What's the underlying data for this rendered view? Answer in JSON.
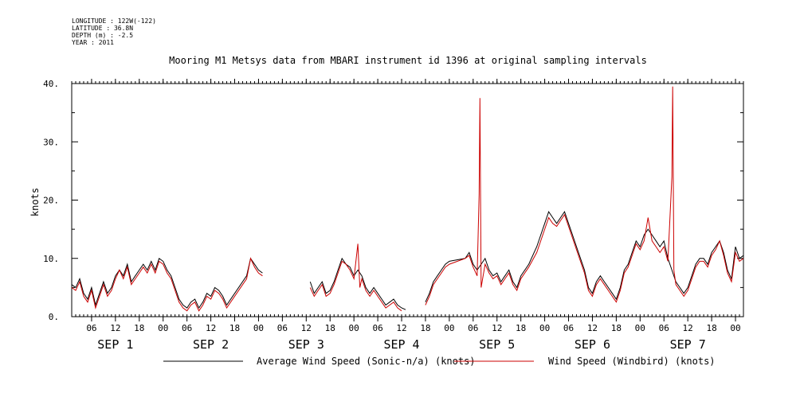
{
  "header": {
    "longitude": "LONGITUDE : 122W(-122)",
    "latitude": "LATITUDE : 36.8N",
    "depth": "DEPTH (m) : -2.5",
    "year": "YEAR : 2011"
  },
  "chart_data": {
    "type": "line",
    "title": "Mooring M1 Metsys data from MBARI instrument id 1396 at original sampling intervals",
    "xlabel": "",
    "ylabel": "knots",
    "xlim_hours_note": "",
    "ylim": [
      0,
      40
    ],
    "y_ticks": [
      0,
      10,
      20,
      30,
      40
    ],
    "y_tick_labels": [
      "0.",
      "10.",
      "20.",
      "30.",
      "40."
    ],
    "x_hour_ticks": [
      {
        "h": 6,
        "label": "06"
      },
      {
        "h": 12,
        "label": "12"
      },
      {
        "h": 18,
        "label": "18"
      },
      {
        "h": 24,
        "label": "00"
      },
      {
        "h": 30,
        "label": "06"
      },
      {
        "h": 36,
        "label": "12"
      },
      {
        "h": 42,
        "label": "18"
      },
      {
        "h": 48,
        "label": "00"
      },
      {
        "h": 54,
        "label": "06"
      },
      {
        "h": 60,
        "label": "12"
      },
      {
        "h": 66,
        "label": "18"
      },
      {
        "h": 72,
        "label": "00"
      },
      {
        "h": 78,
        "label": "06"
      },
      {
        "h": 84,
        "label": "12"
      },
      {
        "h": 90,
        "label": "18"
      },
      {
        "h": 96,
        "label": "00"
      },
      {
        "h": 102,
        "label": "06"
      },
      {
        "h": 108,
        "label": "12"
      },
      {
        "h": 114,
        "label": "18"
      },
      {
        "h": 120,
        "label": "00"
      },
      {
        "h": 126,
        "label": "06"
      },
      {
        "h": 132,
        "label": "12"
      },
      {
        "h": 138,
        "label": "18"
      },
      {
        "h": 144,
        "label": "00"
      },
      {
        "h": 150,
        "label": "06"
      },
      {
        "h": 156,
        "label": "12"
      },
      {
        "h": 162,
        "label": "18"
      },
      {
        "h": 168,
        "label": "00"
      }
    ],
    "day_labels": [
      {
        "h": 12,
        "label": "SEP  1"
      },
      {
        "h": 36,
        "label": "SEP  2"
      },
      {
        "h": 60,
        "label": "SEP  3"
      },
      {
        "h": 84,
        "label": "SEP  4"
      },
      {
        "h": 108,
        "label": "SEP  5"
      },
      {
        "h": 132,
        "label": "SEP  6"
      },
      {
        "h": 156,
        "label": "SEP  7"
      }
    ],
    "x_range_hours": [
      1,
      170
    ],
    "series": [
      {
        "name": "Average Wind Speed (Sonic-n/a) (knots)",
        "color": "#000000",
        "points": [
          [
            1,
            5.5
          ],
          [
            2,
            5
          ],
          [
            3,
            6.5
          ],
          [
            4,
            4
          ],
          [
            5,
            3
          ],
          [
            6,
            5
          ],
          [
            7,
            2
          ],
          [
            8,
            4
          ],
          [
            9,
            6
          ],
          [
            10,
            4
          ],
          [
            11,
            5
          ],
          [
            12,
            7
          ],
          [
            13,
            8
          ],
          [
            14,
            7
          ],
          [
            15,
            9
          ],
          [
            16,
            6
          ],
          [
            17,
            7
          ],
          [
            18,
            8
          ],
          [
            19,
            9
          ],
          [
            20,
            8
          ],
          [
            21,
            9.5
          ],
          [
            22,
            8
          ],
          [
            23,
            10
          ],
          [
            24,
            9.5
          ],
          [
            25,
            8
          ],
          [
            26,
            7
          ],
          [
            27,
            5
          ],
          [
            28,
            3
          ],
          [
            29,
            2
          ],
          [
            30,
            1.5
          ],
          [
            31,
            2.5
          ],
          [
            32,
            3
          ],
          [
            33,
            1.5
          ],
          [
            34,
            2.5
          ],
          [
            35,
            4
          ],
          [
            36,
            3.5
          ],
          [
            37,
            5
          ],
          [
            38,
            4.5
          ],
          [
            39,
            3.5
          ],
          [
            40,
            2
          ],
          [
            45,
            7
          ],
          [
            46,
            10
          ],
          [
            47,
            9
          ],
          [
            48,
            8
          ],
          [
            49,
            7.5
          ],
          [
            null,
            null
          ],
          [
            61,
            6
          ],
          [
            62,
            4
          ],
          [
            63,
            5
          ],
          [
            64,
            6
          ],
          [
            65,
            4
          ],
          [
            66,
            4.5
          ],
          [
            67,
            6
          ],
          [
            68,
            8
          ],
          [
            69,
            10
          ],
          [
            70,
            9
          ],
          [
            71,
            8.5
          ],
          [
            72,
            7
          ],
          [
            73,
            8
          ],
          [
            74,
            7
          ],
          [
            75,
            5
          ],
          [
            76,
            4
          ],
          [
            77,
            5
          ],
          [
            78,
            4
          ],
          [
            79,
            3
          ],
          [
            80,
            2
          ],
          [
            81,
            2.5
          ],
          [
            82,
            3
          ],
          [
            83,
            2
          ],
          [
            84,
            1.5
          ],
          [
            85,
            1.2
          ],
          [
            null,
            null
          ],
          [
            90,
            2.5
          ],
          [
            91,
            4
          ],
          [
            92,
            6
          ],
          [
            93,
            7
          ],
          [
            94,
            8
          ],
          [
            95,
            9
          ],
          [
            96,
            9.5
          ],
          [
            100,
            10
          ],
          [
            101,
            11
          ],
          [
            102,
            9
          ],
          [
            103,
            8
          ],
          [
            104,
            9
          ],
          [
            105,
            10
          ],
          [
            106,
            8
          ],
          [
            107,
            7
          ],
          [
            108,
            7.5
          ],
          [
            109,
            6
          ],
          [
            110,
            7
          ],
          [
            111,
            8
          ],
          [
            112,
            6
          ],
          [
            113,
            5
          ],
          [
            114,
            7
          ],
          [
            116,
            9
          ],
          [
            118,
            12
          ],
          [
            120,
            16
          ],
          [
            121,
            18
          ],
          [
            122,
            17
          ],
          [
            123,
            16
          ],
          [
            124,
            17
          ],
          [
            125,
            18
          ],
          [
            126,
            16
          ],
          [
            127,
            14
          ],
          [
            128,
            12
          ],
          [
            130,
            8
          ],
          [
            131,
            5
          ],
          [
            132,
            4
          ],
          [
            133,
            6
          ],
          [
            134,
            7
          ],
          [
            135,
            6
          ],
          [
            136,
            5
          ],
          [
            137,
            4
          ],
          [
            138,
            3
          ],
          [
            139,
            5
          ],
          [
            140,
            8
          ],
          [
            141,
            9
          ],
          [
            142,
            11
          ],
          [
            143,
            13
          ],
          [
            144,
            12
          ],
          [
            145,
            14
          ],
          [
            146,
            15
          ],
          [
            147,
            14
          ],
          [
            148,
            13
          ],
          [
            149,
            12
          ],
          [
            150,
            13
          ],
          [
            151,
            10
          ],
          [
            152,
            8
          ],
          [
            153,
            6
          ],
          [
            154,
            5
          ],
          [
            155,
            4
          ],
          [
            156,
            5
          ],
          [
            157,
            7
          ],
          [
            158,
            9
          ],
          [
            159,
            10
          ],
          [
            160,
            10
          ],
          [
            161,
            9
          ],
          [
            162,
            11
          ],
          [
            163,
            12
          ],
          [
            164,
            13
          ],
          [
            165,
            11
          ],
          [
            166,
            8
          ],
          [
            167,
            6.5
          ],
          [
            168,
            12
          ],
          [
            169,
            10
          ],
          [
            170,
            10.5
          ]
        ]
      },
      {
        "name": "Wind Speed (Windbird) (knots)",
        "color": "#cc0000",
        "points": [
          [
            1,
            5
          ],
          [
            2,
            4.5
          ],
          [
            3,
            6
          ],
          [
            4,
            3.5
          ],
          [
            5,
            2.5
          ],
          [
            6,
            4.5
          ],
          [
            7,
            1.5
          ],
          [
            8,
            3.5
          ],
          [
            9,
            5.5
          ],
          [
            10,
            3.5
          ],
          [
            11,
            4.5
          ],
          [
            12,
            6.5
          ],
          [
            13,
            8
          ],
          [
            14,
            6.5
          ],
          [
            15,
            8.5
          ],
          [
            16,
            5.5
          ],
          [
            17,
            6.5
          ],
          [
            18,
            7.5
          ],
          [
            19,
            8.5
          ],
          [
            20,
            7.5
          ],
          [
            21,
            9
          ],
          [
            22,
            7.5
          ],
          [
            23,
            9.5
          ],
          [
            24,
            9
          ],
          [
            25,
            7.5
          ],
          [
            26,
            6.5
          ],
          [
            27,
            4.5
          ],
          [
            28,
            2.5
          ],
          [
            29,
            1.5
          ],
          [
            30,
            1
          ],
          [
            31,
            2
          ],
          [
            32,
            2.5
          ],
          [
            33,
            1
          ],
          [
            34,
            2
          ],
          [
            35,
            3.5
          ],
          [
            36,
            3
          ],
          [
            37,
            4.5
          ],
          [
            38,
            4
          ],
          [
            39,
            3
          ],
          [
            40,
            1.5
          ],
          [
            45,
            6.5
          ],
          [
            46,
            10
          ],
          [
            47,
            8.5
          ],
          [
            48,
            7.5
          ],
          [
            49,
            7
          ],
          [
            null,
            null
          ],
          [
            61,
            5
          ],
          [
            62,
            3.5
          ],
          [
            63,
            4.5
          ],
          [
            64,
            5.5
          ],
          [
            65,
            3.5
          ],
          [
            66,
            4
          ],
          [
            67,
            5.5
          ],
          [
            68,
            7.5
          ],
          [
            69,
            9.5
          ],
          [
            70,
            9
          ],
          [
            71,
            8
          ],
          [
            72,
            6.5
          ],
          [
            73,
            12.5
          ],
          [
            73.5,
            5
          ],
          [
            74,
            6.5
          ],
          [
            75,
            4.5
          ],
          [
            76,
            3.5
          ],
          [
            77,
            4.5
          ],
          [
            78,
            3.5
          ],
          [
            79,
            2.5
          ],
          [
            80,
            1.5
          ],
          [
            81,
            2
          ],
          [
            82,
            2.5
          ],
          [
            83,
            1.5
          ],
          [
            84,
            1
          ],
          [
            null,
            null
          ],
          [
            90,
            2
          ],
          [
            91,
            3.5
          ],
          [
            92,
            5.5
          ],
          [
            93,
            6.5
          ],
          [
            94,
            7.5
          ],
          [
            95,
            8.5
          ],
          [
            96,
            9
          ],
          [
            100,
            10
          ],
          [
            101,
            10.5
          ],
          [
            102,
            8.5
          ],
          [
            103,
            7
          ],
          [
            103.5,
            21
          ],
          [
            103.7,
            37.5
          ],
          [
            104,
            5
          ],
          [
            105,
            9
          ],
          [
            106,
            7.5
          ],
          [
            107,
            6.5
          ],
          [
            108,
            7
          ],
          [
            109,
            5.5
          ],
          [
            110,
            6.5
          ],
          [
            111,
            7.5
          ],
          [
            112,
            5.5
          ],
          [
            113,
            4.5
          ],
          [
            114,
            6.5
          ],
          [
            116,
            8.5
          ],
          [
            118,
            11
          ],
          [
            120,
            15
          ],
          [
            121,
            17
          ],
          [
            122,
            16
          ],
          [
            123,
            15.5
          ],
          [
            124,
            16.5
          ],
          [
            125,
            17.5
          ],
          [
            126,
            15.5
          ],
          [
            127,
            13.5
          ],
          [
            128,
            11.5
          ],
          [
            130,
            7.5
          ],
          [
            131,
            4.5
          ],
          [
            132,
            3.5
          ],
          [
            133,
            5.5
          ],
          [
            134,
            6.5
          ],
          [
            135,
            5.5
          ],
          [
            136,
            4.5
          ],
          [
            137,
            3.5
          ],
          [
            138,
            2.5
          ],
          [
            139,
            4.5
          ],
          [
            140,
            7.5
          ],
          [
            141,
            8.5
          ],
          [
            142,
            10.5
          ],
          [
            143,
            12.5
          ],
          [
            144,
            11.5
          ],
          [
            145,
            13
          ],
          [
            146,
            17
          ],
          [
            147,
            13
          ],
          [
            148,
            12
          ],
          [
            149,
            11
          ],
          [
            150,
            12
          ],
          [
            151,
            9.5
          ],
          [
            152,
            24
          ],
          [
            152.2,
            39.5
          ],
          [
            152.5,
            8
          ],
          [
            153,
            5.5
          ],
          [
            154,
            4.5
          ],
          [
            155,
            3.5
          ],
          [
            156,
            4.5
          ],
          [
            157,
            6.5
          ],
          [
            158,
            8.5
          ],
          [
            159,
            9.5
          ],
          [
            160,
            9.5
          ],
          [
            161,
            8.5
          ],
          [
            162,
            10.5
          ],
          [
            163,
            11.5
          ],
          [
            164,
            13
          ],
          [
            165,
            10.5
          ],
          [
            166,
            7.5
          ],
          [
            167,
            6
          ],
          [
            168,
            11
          ],
          [
            169,
            9.5
          ],
          [
            170,
            10
          ]
        ]
      }
    ],
    "legend": "bottom"
  }
}
